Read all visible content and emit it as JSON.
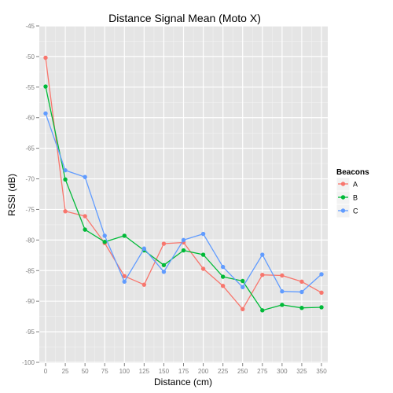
{
  "chart_data": {
    "type": "line",
    "title": "Distance Signal Mean (Moto X)",
    "xlabel": "Distance (cm)",
    "ylabel": "RSSI (dB)",
    "xlim": [
      0,
      350
    ],
    "ylim": [
      -100,
      -45
    ],
    "x_ticks": [
      0,
      25,
      50,
      75,
      100,
      125,
      150,
      175,
      200,
      225,
      250,
      275,
      300,
      325,
      350
    ],
    "y_ticks": [
      -100,
      -95,
      -90,
      -85,
      -80,
      -75,
      -70,
      -65,
      -60,
      -55,
      -50,
      -45
    ],
    "grid": true,
    "legend_title": "Beacons",
    "legend_position": "right",
    "series": [
      {
        "name": "A",
        "color": "#F8766D",
        "x": [
          0,
          25,
          50,
          75,
          100,
          125,
          150,
          175,
          200,
          225,
          250,
          275,
          300,
          325,
          350
        ],
        "y": [
          -50.2,
          -75.3,
          -76.1,
          -80.5,
          -85.9,
          -87.3,
          -80.6,
          -80.4,
          -84.7,
          -87.5,
          -91.3,
          -85.7,
          -85.8,
          -86.8,
          -88.6
        ]
      },
      {
        "name": "B",
        "color": "#00BA38",
        "x": [
          0,
          25,
          50,
          75,
          100,
          125,
          150,
          175,
          200,
          225,
          250,
          275,
          300,
          325,
          350
        ],
        "y": [
          -54.9,
          -70.1,
          -78.3,
          -80.3,
          -79.3,
          -81.7,
          -84.1,
          -81.7,
          -82.4,
          -86.0,
          -86.7,
          -91.5,
          -90.6,
          -91.1,
          -91.0
        ]
      },
      {
        "name": "C",
        "color": "#619CFF",
        "x": [
          0,
          25,
          50,
          75,
          100,
          125,
          150,
          175,
          200,
          225,
          250,
          275,
          300,
          325,
          350
        ],
        "y": [
          -59.3,
          -68.6,
          -69.7,
          -79.3,
          -86.8,
          -81.4,
          -85.2,
          -80.0,
          -79.0,
          -84.4,
          -87.7,
          -82.4,
          -88.4,
          -88.5,
          -85.6
        ]
      }
    ]
  }
}
